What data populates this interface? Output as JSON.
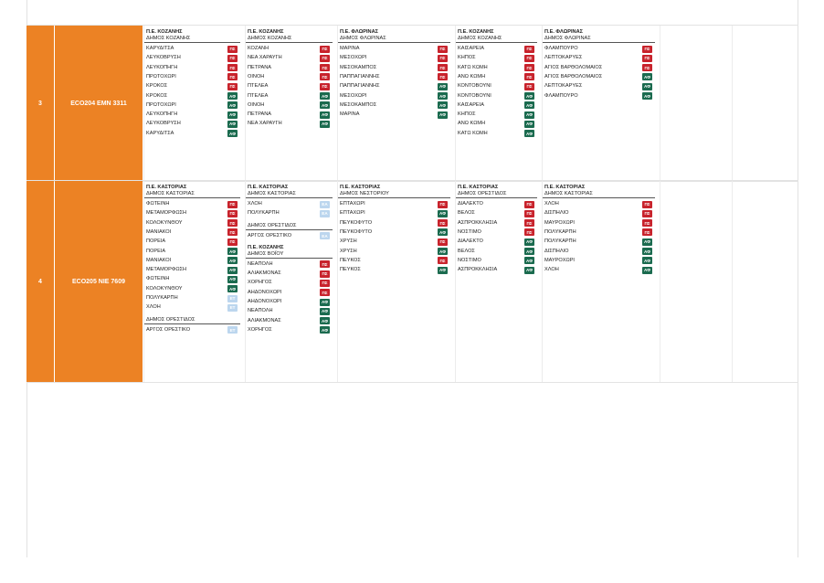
{
  "rows": [
    {
      "num": "3",
      "code": "ECO204  EMN 3311",
      "groups": [
        {
          "blocks": [
            {
              "pe": "Π.Ε. ΚΟΖΑΝΗΣ",
              "dimos": "ΔΗΜΟΣ ΚΟΖΑΝΗΣ",
              "items": [
                {
                  "name": "ΚΑΡΥΔΙΤΣΑ",
                  "tag": "ΠΣ"
                },
                {
                  "name": "ΛΕΥΚΟΒΡΥΣΗ",
                  "tag": "ΠΣ"
                },
                {
                  "name": "ΛΕΥΚΟΠΗΓΗ",
                  "tag": "ΠΣ"
                },
                {
                  "name": "ΠΡΩΤΟΧΩΡΙ",
                  "tag": "ΠΣ"
                },
                {
                  "name": "ΚΡΟΚΟΣ",
                  "tag": "ΠΣ"
                },
                {
                  "name": "ΚΡΟΚΟΣ",
                  "tag": "ΑΦ"
                },
                {
                  "name": "ΠΡΩΤΟΧΩΡΙ",
                  "tag": "ΑΦ"
                },
                {
                  "name": "ΛΕΥΚΟΠΗΓΗ",
                  "tag": "ΑΦ"
                },
                {
                  "name": "ΛΕΥΚΟΒΡΥΣΗ",
                  "tag": "ΑΦ"
                },
                {
                  "name": "ΚΑΡΥΔΙΤΣΑ",
                  "tag": "ΑΦ"
                }
              ]
            }
          ]
        },
        {
          "blocks": [
            {
              "pe": "Π.Ε. ΚΟΖΑΝΗΣ",
              "dimos": "ΔΗΜΟΣ ΚΟΖΑΝΗΣ",
              "items": [
                {
                  "name": "ΚΟΖΑΝΗ",
                  "tag": "ΠΣ"
                },
                {
                  "name": "ΝΕΑ ΧΑΡΑΥΓΗ",
                  "tag": "ΠΣ"
                },
                {
                  "name": "ΠΕΤΡΑΝΑ",
                  "tag": "ΠΣ"
                },
                {
                  "name": "ΟΙΝΟΗ",
                  "tag": "ΠΣ"
                },
                {
                  "name": "ΠΤΕΛΕΑ",
                  "tag": "ΠΣ"
                },
                {
                  "name": "ΠΤΕΛΕΑ",
                  "tag": "ΑΦ"
                },
                {
                  "name": "ΟΙΝΟΗ",
                  "tag": "ΑΦ"
                },
                {
                  "name": "ΠΕΤΡΑΝΑ",
                  "tag": "ΑΦ"
                },
                {
                  "name": "ΝΕΑ ΧΑΡΑΥΓΗ",
                  "tag": "ΑΦ"
                }
              ]
            }
          ]
        },
        {
          "blocks": [
            {
              "pe": "Π.Ε. ΦΛΩΡΙΝΑΣ",
              "dimos": "ΔΗΜΟΣ ΦΛΩΡΙΝΑΣ",
              "items": [
                {
                  "name": "ΜΑΡΙΝΑ",
                  "tag": "ΠΣ"
                },
                {
                  "name": "ΜΕΣΟΧΩΡΙ",
                  "tag": "ΠΣ"
                },
                {
                  "name": "ΜΕΣΟΚΑΜΠΟΣ",
                  "tag": "ΠΣ"
                },
                {
                  "name": "ΠΑΠΠΑΓΙΑΝΝΗΣ",
                  "tag": "ΠΣ"
                },
                {
                  "name": "ΠΑΠΠΑΓΙΑΝΝΗΣ",
                  "tag": "ΑΦ"
                },
                {
                  "name": "ΜΕΣΟΧΩΡΙ",
                  "tag": "ΑΦ"
                },
                {
                  "name": "ΜΕΣΟΚΑΜΠΟΣ",
                  "tag": "ΑΦ"
                },
                {
                  "name": "ΜΑΡΙΝΑ",
                  "tag": "ΑΦ"
                }
              ]
            }
          ]
        },
        {
          "blocks": [
            {
              "pe": "Π.Ε. ΚΟΖΑΝΗΣ",
              "dimos": "ΔΗΜΟΣ ΚΟΖΑΝΗΣ",
              "items": [
                {
                  "name": "ΚΑΙΣΑΡΕΙΑ",
                  "tag": "ΠΣ"
                },
                {
                  "name": "ΚΗΠΟΣ",
                  "tag": "ΠΣ"
                },
                {
                  "name": "ΚΑΤΩ ΚΩΜΗ",
                  "tag": "ΠΣ"
                },
                {
                  "name": "ΑΝΩ ΚΩΜΗ",
                  "tag": "ΠΣ"
                },
                {
                  "name": "ΚΟΝΤΟΒΟΥΝΙ",
                  "tag": "ΠΣ"
                },
                {
                  "name": "ΚΟΝΤΟΒΟΥΝΙ",
                  "tag": "ΑΦ"
                },
                {
                  "name": "ΚΑΙΣΑΡΕΙΑ",
                  "tag": "ΑΦ"
                },
                {
                  "name": "ΚΗΠΟΣ",
                  "tag": "ΑΦ"
                },
                {
                  "name": "ΑΝΩ ΚΩΜΗ",
                  "tag": "ΑΦ"
                },
                {
                  "name": "ΚΑΤΩ ΚΩΜΗ",
                  "tag": "ΑΦ"
                }
              ]
            }
          ]
        },
        {
          "blocks": [
            {
              "pe": "Π.Ε. ΦΛΩΡΙΝΑΣ",
              "dimos": "ΔΗΜΟΣ ΦΛΩΡΙΝΑΣ",
              "items": [
                {
                  "name": "ΦΛΑΜΠΟΥΡΟ",
                  "tag": "ΠΣ"
                },
                {
                  "name": "ΛΕΠΤΟΚΑΡΥΕΣ",
                  "tag": "ΠΣ"
                },
                {
                  "name": "ΑΓΙΟΣ ΒΑΡΘΟΛΟΜΑΙΟΣ",
                  "tag": "ΠΣ"
                },
                {
                  "name": "ΑΓΙΟΣ ΒΑΡΘΟΛΟΜΑΙΟΣ",
                  "tag": "ΑΦ"
                },
                {
                  "name": "ΛΕΠΤΟΚΑΡΥΕΣ",
                  "tag": "ΑΦ"
                },
                {
                  "name": "ΦΛΑΜΠΟΥΡΟ",
                  "tag": "ΑΦ"
                }
              ]
            }
          ]
        }
      ]
    },
    {
      "num": "4",
      "code": "ECO205  NIE 7609",
      "groups": [
        {
          "blocks": [
            {
              "pe": "Π.Ε. ΚΑΣΤΟΡΙΑΣ",
              "dimos": "ΔΗΜΟΣ ΚΑΣΤΟΡΙΑΣ",
              "items": [
                {
                  "name": "ΦΩΤΕΙΝΗ",
                  "tag": "ΠΣ"
                },
                {
                  "name": "ΜΕΤΑΜΟΡΦΩΣΗ",
                  "tag": "ΠΣ"
                },
                {
                  "name": "ΚΟΛΟΚΥΝΘΟΥ",
                  "tag": "ΠΣ"
                },
                {
                  "name": "ΜΑΝΙΑΚΟΙ",
                  "tag": "ΠΣ"
                },
                {
                  "name": "ΠΟΡΕΙΑ",
                  "tag": "ΠΣ"
                },
                {
                  "name": "ΠΟΡΕΙΑ",
                  "tag": "ΑΦ"
                },
                {
                  "name": "ΜΑΝΙΑΚΟΙ",
                  "tag": "ΑΦ"
                },
                {
                  "name": "ΜΕΤΑΜΟΡΦΩΣΗ",
                  "tag": "ΑΦ"
                },
                {
                  "name": "ΦΩΤΕΙΝΗ",
                  "tag": "ΑΦ"
                },
                {
                  "name": "ΚΟΛΟΚΥΝΘΟΥ",
                  "tag": "ΑΦ"
                },
                {
                  "name": "ΠΟΛΥΚΑΡΠΗ",
                  "tag": "ΕΤ"
                },
                {
                  "name": "ΧΛΟΗ",
                  "tag": "ΕΤ"
                }
              ]
            },
            {
              "pe": "",
              "dimos": "ΔΗΜΟΣ ΟΡΕΣΤΙΔΟΣ",
              "items": [
                {
                  "name": "ΑΡΓΟΣ ΟΡΕΣΤΙΚΟ",
                  "tag": "ΕΤ"
                }
              ]
            }
          ]
        },
        {
          "blocks": [
            {
              "pe": "Π.Ε. ΚΑΣΤΟΡΙΑΣ",
              "dimos": "ΔΗΜΟΣ ΚΑΣΤΟΡΙΑΣ",
              "items": [
                {
                  "name": "ΧΛΟΗ",
                  "tag": "ΕΑ"
                },
                {
                  "name": "ΠΟΛΥΚΑΡΠΗ",
                  "tag": "ΕΑ"
                }
              ]
            },
            {
              "pe": "",
              "dimos": "ΔΗΜΟΣ ΟΡΕΣΤΙΔΟΣ",
              "items": [
                {
                  "name": "ΑΡΓΟΣ ΟΡΕΣΤΙΚΟ",
                  "tag": "ΕΑ"
                }
              ]
            },
            {
              "pe": "Π.Ε. ΚΟΖΑΝΗΣ",
              "dimos": "ΔΗΜΟΣ ΒΟΪΟΥ",
              "items": [
                {
                  "name": "ΝΕΑΠΟΛΗ",
                  "tag": "ΠΣ"
                },
                {
                  "name": "ΑΛΙΑΚΜΟΝΑΣ",
                  "tag": "ΠΣ"
                },
                {
                  "name": "ΧΟΡΗΓΟΣ",
                  "tag": "ΠΣ"
                },
                {
                  "name": "ΑΗΔΟΝΟΧΩΡΙ",
                  "tag": "ΠΣ"
                },
                {
                  "name": "ΑΗΔΟΝΟΧΩΡΙ",
                  "tag": "ΑΦ"
                },
                {
                  "name": "ΝΕΑΠΟΛΗ",
                  "tag": "ΑΦ"
                },
                {
                  "name": "ΑΛΙΑΚΜΟΝΑΣ",
                  "tag": "ΑΦ"
                },
                {
                  "name": "ΧΟΡΗΓΟΣ",
                  "tag": "ΑΦ"
                }
              ]
            }
          ]
        },
        {
          "blocks": [
            {
              "pe": "Π.Ε. ΚΑΣΤΟΡΙΑΣ",
              "dimos": "ΔΗΜΟΣ ΝΕΣΤΟΡΙΟΥ",
              "items": [
                {
                  "name": "ΕΠΤΑΧΩΡΙ",
                  "tag": "ΠΣ"
                },
                {
                  "name": "ΕΠΤΑΧΩΡΙ",
                  "tag": "ΑΦ"
                },
                {
                  "name": "ΠΕΥΚΟΦΥΤΟ",
                  "tag": "ΠΣ"
                },
                {
                  "name": "ΠΕΥΚΟΦΥΤΟ",
                  "tag": "ΑΦ"
                },
                {
                  "name": "ΧΡΥΣΗ",
                  "tag": "ΠΣ"
                },
                {
                  "name": "ΧΡΥΣΗ",
                  "tag": "ΑΦ"
                },
                {
                  "name": "ΠΕΥΚΟΣ",
                  "tag": "ΠΣ"
                },
                {
                  "name": "ΠΕΥΚΟΣ",
                  "tag": "ΑΦ"
                }
              ]
            }
          ]
        },
        {
          "blocks": [
            {
              "pe": "Π.Ε. ΚΑΣΤΟΡΙΑΣ",
              "dimos": "ΔΗΜΟΣ ΟΡΕΣΤΙΔΟΣ",
              "items": [
                {
                  "name": "ΔΙΑΛΕΚΤΟ",
                  "tag": "ΠΣ"
                },
                {
                  "name": "ΒΕΛΟΣ",
                  "tag": "ΠΣ"
                },
                {
                  "name": "ΑΣΠΡΟΚΚΛΗΣΙΑ",
                  "tag": "ΠΣ"
                },
                {
                  "name": "ΝΟΣΤΙΜΟ",
                  "tag": "ΠΣ"
                },
                {
                  "name": "ΔΙΑΛΕΚΤΟ",
                  "tag": "ΑΦ"
                },
                {
                  "name": "ΒΕΛΟΣ",
                  "tag": "ΑΦ"
                },
                {
                  "name": "ΝΟΣΤΙΜΟ",
                  "tag": "ΑΦ"
                },
                {
                  "name": "ΑΣΠΡΟΚΚΛΗΣΙΑ",
                  "tag": "ΑΦ"
                }
              ]
            }
          ]
        },
        {
          "blocks": [
            {
              "pe": "Π.Ε. ΚΑΣΤΟΡΙΑΣ",
              "dimos": "ΔΗΜΟΣ ΚΑΣΤΟΡΙΑΣ",
              "items": [
                {
                  "name": "ΧΛΟΗ",
                  "tag": "ΠΣ"
                },
                {
                  "name": "ΔΙΣΠΗΛΙΟ",
                  "tag": "ΠΣ"
                },
                {
                  "name": "ΜΑΥΡΟΧΩΡΙ",
                  "tag": "ΠΣ"
                },
                {
                  "name": "ΠΟΛΥΚΑΡΠΗ",
                  "tag": "ΠΣ"
                },
                {
                  "name": "ΠΟΛΥΚΑΡΠΗ",
                  "tag": "ΑΦ"
                },
                {
                  "name": "ΔΙΣΠΗΛΙΟ",
                  "tag": "ΑΦ"
                },
                {
                  "name": "ΜΑΥΡΟΧΩΡΙ",
                  "tag": "ΑΦ"
                },
                {
                  "name": "ΧΛΟΗ",
                  "tag": "ΑΦ"
                }
              ]
            }
          ]
        }
      ]
    }
  ],
  "colors": {
    "accent": "#ec8224",
    "tag_ps": "#c8232c",
    "tag_af": "#1b6b4f",
    "tag_light": "#bcd6ee"
  }
}
